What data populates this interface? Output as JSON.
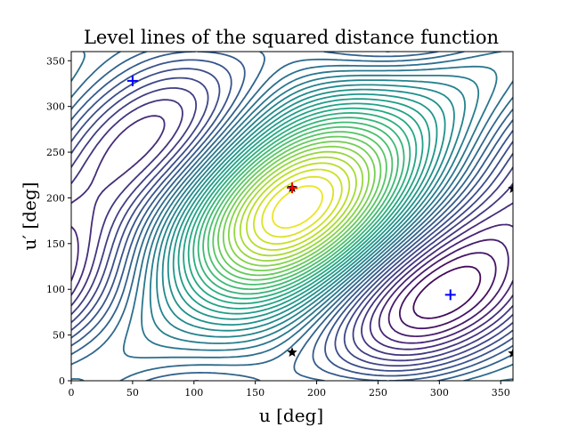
{
  "chart_data": {
    "type": "contour",
    "title": "Level lines of the squared distance function",
    "xlabel": "u [deg]",
    "ylabel": "u′ [deg]",
    "xlim": [
      0,
      360
    ],
    "ylim": [
      0,
      360
    ],
    "x_ticks": [
      0,
      50,
      100,
      150,
      200,
      250,
      300,
      350
    ],
    "y_ticks": [
      0,
      50,
      100,
      150,
      200,
      250,
      300,
      350
    ],
    "grid": false,
    "colormap": "viridis",
    "markers": [
      {
        "kind": "plus",
        "color": "#0000ff",
        "x": 50,
        "y": 328
      },
      {
        "kind": "plus",
        "color": "#0000ff",
        "x": 309,
        "y": 94
      },
      {
        "kind": "plus",
        "color": "#ff0000",
        "x": 180,
        "y": 211
      },
      {
        "kind": "star",
        "color": "#000000",
        "x": 180,
        "y": 211
      },
      {
        "kind": "star",
        "color": "#000000",
        "x": 180,
        "y": 31
      },
      {
        "kind": "star",
        "color": "#000000",
        "x": 360,
        "y": 210
      },
      {
        "kind": "star",
        "color": "#000000",
        "x": 360,
        "y": 30
      }
    ]
  }
}
